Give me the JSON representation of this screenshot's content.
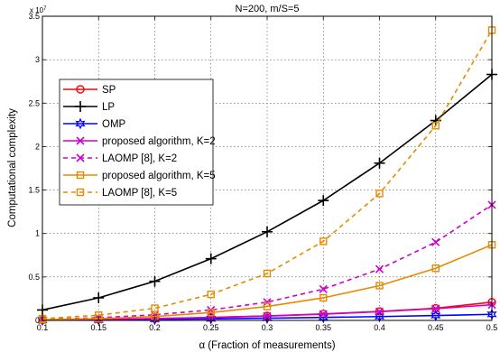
{
  "chart_data": {
    "type": "line",
    "title": "N=200, m/S=5",
    "xlabel": "α (Fraction of measurements)",
    "ylabel": "Computational complexity",
    "y_multiplier": "x 10",
    "y_exponent": "7",
    "xlim": [
      0.1,
      0.5
    ],
    "ylim": [
      0,
      3.5
    ],
    "x_ticks": [
      "0.1",
      "0.15",
      "0.2",
      "0.25",
      "0.3",
      "0.35",
      "0.4",
      "0.45",
      "0.5"
    ],
    "y_ticks": [
      "0",
      "0.5",
      "1",
      "1.5",
      "2",
      "2.5",
      "3",
      "3.5"
    ],
    "grid": true,
    "legend_position": "upper-left",
    "x": [
      0.1,
      0.15,
      0.2,
      0.25,
      0.3,
      0.35,
      0.4,
      0.45,
      0.5
    ],
    "series": [
      {
        "name": "SP",
        "color": "#ff0000",
        "marker": "circle",
        "dash": "solid",
        "values": [
          0.005,
          0.012,
          0.022,
          0.035,
          0.052,
          0.075,
          0.103,
          0.14,
          0.21
        ]
      },
      {
        "name": "LP",
        "color": "#000000",
        "marker": "plus",
        "dash": "solid",
        "values": [
          0.12,
          0.26,
          0.45,
          0.71,
          1.02,
          1.38,
          1.81,
          2.3,
          2.83
        ]
      },
      {
        "name": "OMP",
        "color": "#0000ff",
        "marker": "star",
        "dash": "solid",
        "values": [
          0.003,
          0.007,
          0.012,
          0.018,
          0.025,
          0.034,
          0.044,
          0.056,
          0.07
        ]
      },
      {
        "name": "proposed algorithm, K=2",
        "color": "#cc00cc",
        "marker": "x",
        "dash": "solid",
        "values": [
          0.004,
          0.01,
          0.02,
          0.032,
          0.05,
          0.072,
          0.1,
          0.135,
          0.18
        ]
      },
      {
        "name": "LAOMP [8], K=2",
        "color": "#cc00cc",
        "marker": "x",
        "dash": "dashed",
        "values": [
          0.01,
          0.03,
          0.065,
          0.12,
          0.21,
          0.36,
          0.59,
          0.9,
          1.33
        ]
      },
      {
        "name": "proposed algorithm, K=5",
        "color": "#e68a00",
        "marker": "square",
        "dash": "solid",
        "values": [
          0.008,
          0.02,
          0.045,
          0.09,
          0.16,
          0.26,
          0.4,
          0.6,
          0.87
        ]
      },
      {
        "name": "LAOMP [8], K=5",
        "color": "#e68a00",
        "marker": "square",
        "dash": "dashed",
        "values": [
          0.02,
          0.06,
          0.14,
          0.3,
          0.54,
          0.91,
          1.46,
          2.24,
          3.34
        ]
      }
    ]
  }
}
